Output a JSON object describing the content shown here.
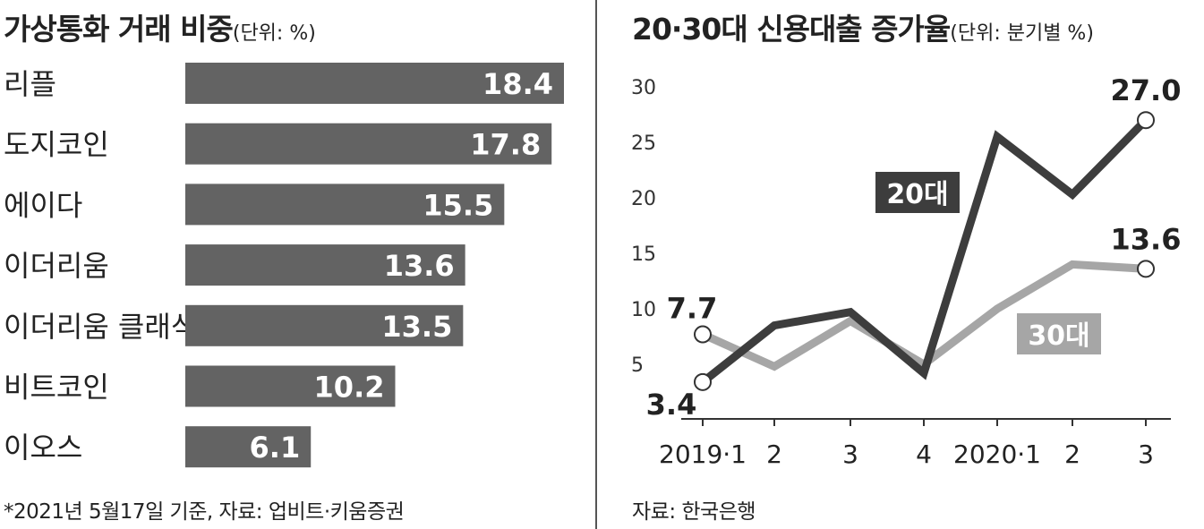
{
  "left_chart": {
    "title": "가상통화 거래 비중",
    "unit": "(단위: %)",
    "footnote": "*2021년 5월17일 기준, 자료: 업비트·키움증권"
  },
  "right_chart": {
    "title": "20·30대 신용대출 증가율",
    "unit": "(단위: 분기별 %)",
    "source": "자료: 한국은행"
  },
  "colors": {
    "bar": "#636363",
    "series_20s": "#3d3d3d",
    "series_30s": "#a6a6a6",
    "label_20s_bg": "#3d3d3d",
    "label_30s_bg": "#a6a6a6"
  },
  "chart_data": [
    {
      "type": "bar",
      "orientation": "horizontal",
      "title": "가상통화 거래 비중",
      "unit": "(단위: %)",
      "categories": [
        "리플",
        "도지코인",
        "에이다",
        "이더리움",
        "이더리움 클래식",
        "비트코인",
        "이오스"
      ],
      "values": [
        18.4,
        17.8,
        15.5,
        13.6,
        13.5,
        10.2,
        6.1
      ],
      "value_labels": [
        "18.4",
        "17.8",
        "15.5",
        "13.6",
        "13.5",
        "10.2",
        "6.1"
      ],
      "xlim": [
        0,
        18.4
      ],
      "grid": false
    },
    {
      "type": "line",
      "title": "20·30대 신용대출 증가율",
      "unit": "(단위: 분기별 %)",
      "categories": [
        "2019·1",
        "2",
        "3",
        "4",
        "2020·1",
        "2",
        "3"
      ],
      "ylim": [
        0,
        30
      ],
      "yticks": [
        "5",
        "10",
        "15",
        "20",
        "25",
        "30"
      ],
      "grid": false,
      "series": [
        {
          "name": "20대",
          "values": [
            3.4,
            8.5,
            9.7,
            4.2,
            25.5,
            20.3,
            27.0
          ]
        },
        {
          "name": "30대",
          "values": [
            7.7,
            4.8,
            8.9,
            5.0,
            10.0,
            14.0,
            13.6
          ]
        }
      ],
      "annotations": {
        "20대_start": "3.4",
        "20대_end": "27.0",
        "30대_start": "7.7",
        "30대_end": "13.6"
      }
    }
  ]
}
